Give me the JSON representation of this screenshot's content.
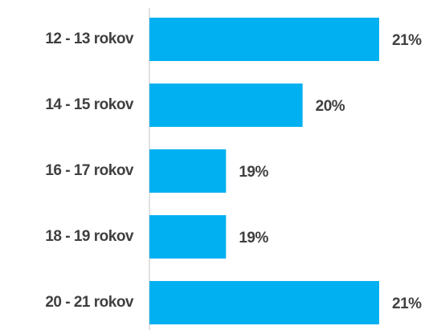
{
  "chart_data": {
    "type": "bar",
    "orientation": "horizontal",
    "categories": [
      "12 - 13 rokov",
      "14 - 15 rokov",
      "16 - 17 rokov",
      "18 - 19 rokov",
      "20 - 21 rokov"
    ],
    "values": [
      21,
      20,
      19,
      19,
      21
    ],
    "value_labels": [
      "21%",
      "20%",
      "19%",
      "19%",
      "21%"
    ],
    "color": "#00b0f0",
    "xlim": [
      18,
      21
    ]
  }
}
